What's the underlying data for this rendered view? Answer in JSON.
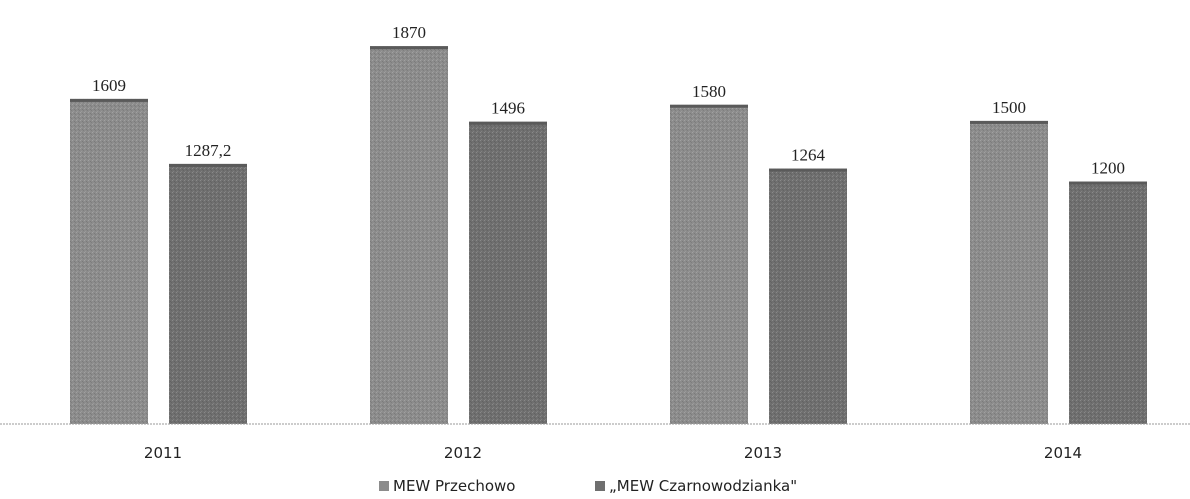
{
  "chart_data": {
    "type": "bar",
    "categories": [
      "2011",
      "2012",
      "2013",
      "2014"
    ],
    "series": [
      {
        "name": "MEW Przechowo",
        "values": [
          1609,
          1870,
          1580,
          1500
        ],
        "labels": [
          "1609",
          "1870",
          "1580",
          "1500"
        ],
        "color": "#8c8c8c"
      },
      {
        "name": "„MEW Czarnowodzianka\"",
        "values": [
          1287.2,
          1496,
          1264,
          1200
        ],
        "labels": [
          "1287,2",
          "1496",
          "1264",
          "1200"
        ],
        "color": "#6f6f6f"
      }
    ],
    "ylim": [
      0,
      1950
    ],
    "grid": false,
    "legend_position": "bottom-center"
  }
}
